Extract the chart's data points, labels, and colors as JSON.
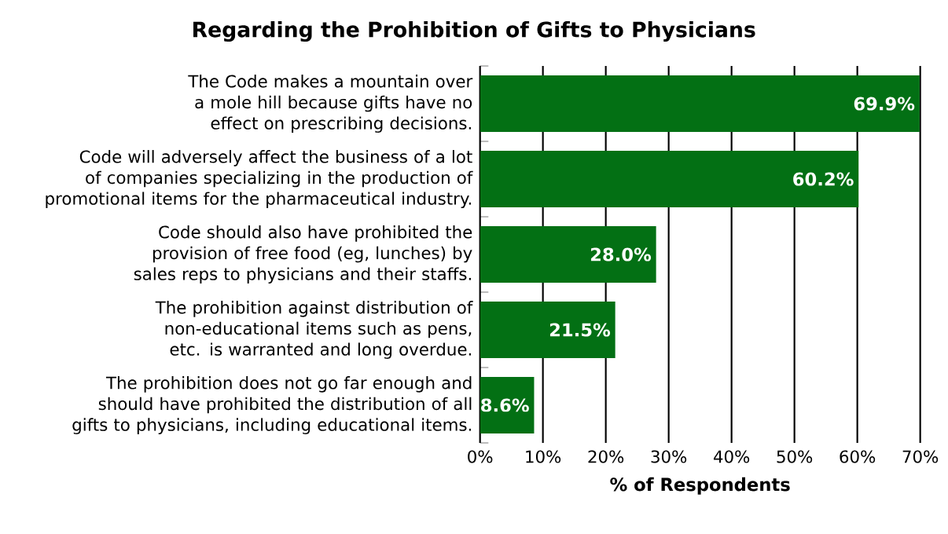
{
  "chart_data": {
    "type": "bar",
    "orientation": "horizontal",
    "title": "Regarding the Prohibition of Gifts to Physicians",
    "xlabel": "% of Respondents",
    "categories": [
      "The Code makes a mountain over a mole hill because gifts have no effect on prescribing decisions.",
      "Code will adversely affect the business of a lot of companies specializing in the production of promotional items for the pharmaceutical industry.",
      "Code should also have prohibited the provision of free food (eg, lunches) by sales reps to physicians and their staffs.",
      "The prohibition against distribution of non-educational items such as pens, etc. is warranted and long overdue.",
      "The prohibition does not go far enough and should have prohibited the distribution of all gifts to physicians, including educational items."
    ],
    "values": [
      69.9,
      60.2,
      28.0,
      21.5,
      8.6
    ],
    "value_labels": [
      "69.9%",
      "60.2%",
      "28.0%",
      "21.5%",
      "8.6%"
    ],
    "color": "#037014",
    "xlim": [
      0,
      70
    ],
    "xticks": [
      {
        "value": 0,
        "label": "0%"
      },
      {
        "value": 10,
        "label": "10%"
      },
      {
        "value": 20,
        "label": "20%"
      },
      {
        "value": 30,
        "label": "30%"
      },
      {
        "value": 40,
        "label": "40%"
      },
      {
        "value": 50,
        "label": "50%"
      },
      {
        "value": 60,
        "label": "60%"
      },
      {
        "value": 70,
        "label": "70%"
      }
    ],
    "grid": "x"
  }
}
